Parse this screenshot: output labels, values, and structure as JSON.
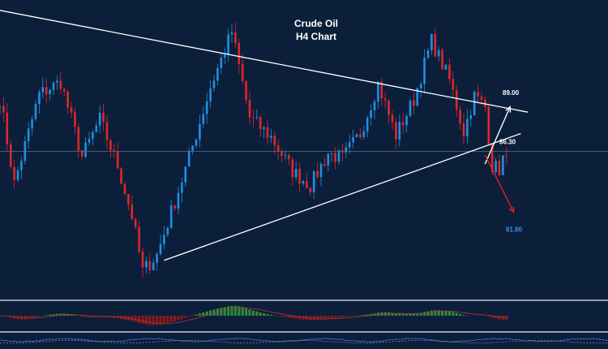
{
  "chart_data": {
    "type": "candlestick",
    "title": "Crude Oil",
    "subtitle": "H4 Chart",
    "levels": [
      {
        "label": "89.00",
        "value": 89.0,
        "color": "#ffffff"
      },
      {
        "label": "86.30",
        "value": 86.3,
        "color": "#ffffff"
      },
      {
        "label": "81.80",
        "value": 81.8,
        "color": "#3a8ee6"
      }
    ],
    "price_range": [
      78.0,
      94.0
    ],
    "support_reference": 86.3,
    "trendlines": [
      {
        "name": "descending-resistance",
        "from": [
          0,
          94.1
        ],
        "to": [
          148,
          88.4
        ]
      },
      {
        "name": "ascending-support",
        "from": [
          46,
          80.1
        ],
        "to": [
          146,
          87.2
        ]
      }
    ],
    "arrows": [
      {
        "name": "bullish-scenario",
        "color": "#ffffff",
        "from": [
          136,
          85.5
        ],
        "to": [
          143,
          88.7
        ]
      },
      {
        "name": "bearish-scenario",
        "color": "#e02020",
        "from": [
          136,
          86.0
        ],
        "to": [
          144,
          82.8
        ]
      }
    ],
    "waypoints": [
      [
        0,
        89.2
      ],
      [
        4,
        84.4
      ],
      [
        11,
        89.4
      ],
      [
        17,
        90.1
      ],
      [
        23,
        85.9
      ],
      [
        28,
        88.0
      ],
      [
        33,
        85.4
      ],
      [
        37,
        82.6
      ],
      [
        40,
        79.5
      ],
      [
        44,
        80.4
      ],
      [
        52,
        85.2
      ],
      [
        59,
        89.8
      ],
      [
        65,
        92.9
      ],
      [
        70,
        88.1
      ],
      [
        76,
        87.0
      ],
      [
        82,
        85.1
      ],
      [
        87,
        84.3
      ],
      [
        92,
        86.1
      ],
      [
        96,
        85.8
      ],
      [
        101,
        87.2
      ],
      [
        106,
        90.0
      ],
      [
        111,
        87.1
      ],
      [
        116,
        89.1
      ],
      [
        121,
        92.4
      ],
      [
        126,
        90.2
      ],
      [
        130,
        87.3
      ],
      [
        133,
        89.3
      ],
      [
        136,
        88.7
      ],
      [
        138,
        85.4
      ],
      [
        140,
        85.2
      ],
      [
        141,
        85.8
      ],
      [
        142,
        85.6
      ]
    ],
    "macd": {
      "colors": {
        "positive": "#2e8a3a",
        "negative": "#8a1a1a"
      }
    },
    "grid": false
  }
}
